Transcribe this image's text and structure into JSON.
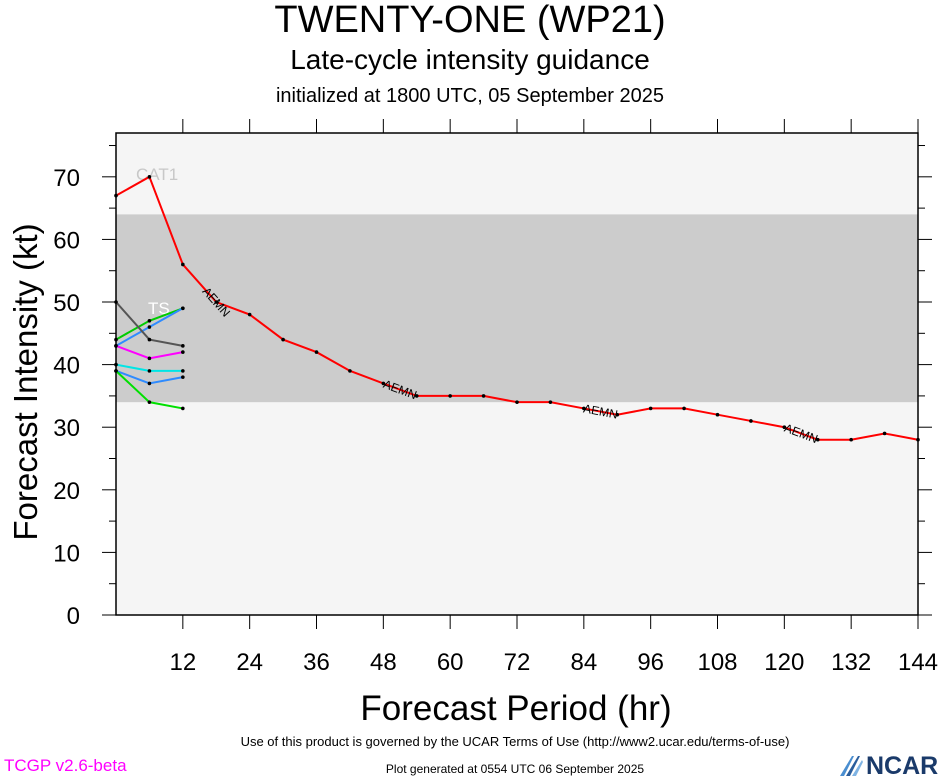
{
  "header": {
    "title": "TWENTY-ONE (WP21)",
    "subtitle": "Late-cycle intensity guidance",
    "init": "initialized at 1800 UTC, 05 September 2025"
  },
  "footer": {
    "terms": "Use of this product is governed by the UCAR Terms of Use (http://www2.ucar.edu/terms-of-use)",
    "generated": "Plot generated at 0554 UTC   06 September 2025",
    "version": "TCGP v2.6-beta",
    "logo": "NCAR"
  },
  "colors": {
    "plot_bg": "#f5f5f5",
    "band": "#cccccc",
    "band_label": "#c8c8c8",
    "ts_label": "#ffffff"
  },
  "chart_data": {
    "type": "line",
    "xlabel": "Forecast Period (hr)",
    "ylabel": "Forecast Intensity (kt)",
    "xlim": [
      0,
      144
    ],
    "ylim": [
      0,
      77
    ],
    "xticks": [
      12,
      24,
      36,
      48,
      60,
      72,
      84,
      96,
      108,
      120,
      132,
      144
    ],
    "yticks": [
      0,
      10,
      20,
      30,
      40,
      50,
      60,
      70
    ],
    "bands": [
      {
        "name": "TS",
        "from": 34,
        "to": 64
      },
      {
        "name": "CAT1",
        "from": 64,
        "to": 77
      }
    ],
    "series": [
      {
        "name": "AEMN",
        "color": "#ff0000",
        "x": [
          0,
          6,
          12,
          18,
          24,
          30,
          36,
          42,
          48,
          54,
          60,
          66,
          72,
          78,
          84,
          90,
          96,
          102,
          108,
          114,
          120,
          126,
          132,
          138,
          144
        ],
        "y": [
          67,
          70,
          56,
          50,
          48,
          44,
          42,
          39,
          37,
          35,
          35,
          35,
          34,
          34,
          33,
          32,
          33,
          33,
          32,
          31,
          30,
          28,
          28,
          29,
          28
        ],
        "labels_at": [
          18,
          51,
          87,
          123
        ]
      },
      {
        "color": "#00cc00",
        "x": [
          0,
          6,
          12
        ],
        "y": [
          44,
          47,
          49
        ]
      },
      {
        "color": "#2e8bff",
        "x": [
          0,
          6,
          12
        ],
        "y": [
          43,
          46,
          49
        ]
      },
      {
        "color": "#555555",
        "x": [
          0,
          6,
          12
        ],
        "y": [
          50,
          44,
          43
        ]
      },
      {
        "color": "#ff00ff",
        "x": [
          0,
          6,
          12
        ],
        "y": [
          43,
          41,
          42
        ]
      },
      {
        "color": "#00e5e5",
        "x": [
          0,
          6,
          12
        ],
        "y": [
          40,
          39,
          39
        ]
      },
      {
        "color": "#2e8bff",
        "x": [
          0,
          6,
          12
        ],
        "y": [
          39,
          37,
          38
        ]
      },
      {
        "color": "#00e000",
        "x": [
          0,
          6,
          12
        ],
        "y": [
          39,
          34,
          33
        ]
      }
    ]
  }
}
